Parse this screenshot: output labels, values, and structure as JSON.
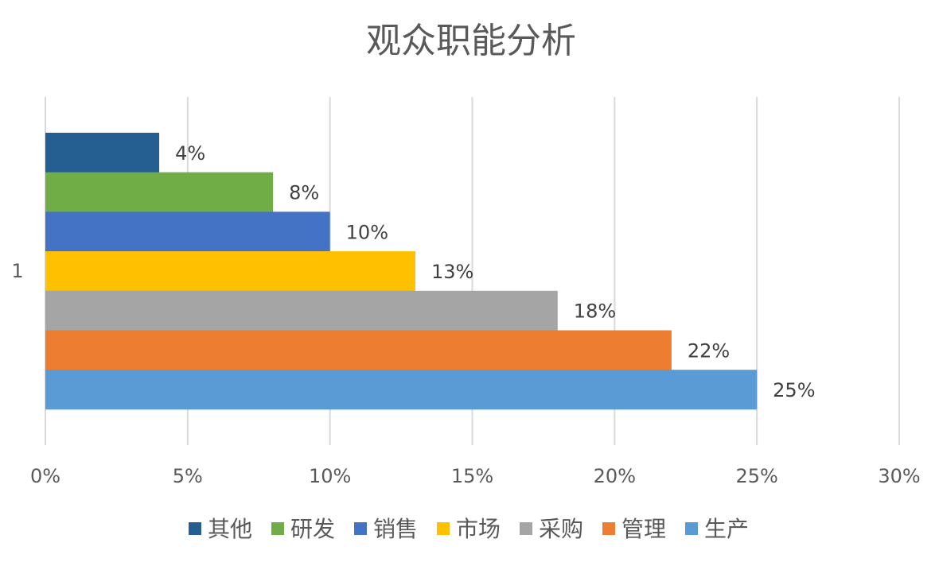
{
  "chart_data": {
    "type": "bar",
    "orientation": "horizontal",
    "title": "观众职能分析",
    "category": "1",
    "series": [
      {
        "name": "其他",
        "value": 4,
        "color": "#255e91"
      },
      {
        "name": "研发",
        "value": 8,
        "color": "#70ad47"
      },
      {
        "name": "销售",
        "value": 10,
        "color": "#4472c4"
      },
      {
        "name": "市场",
        "value": 13,
        "color": "#ffc000"
      },
      {
        "name": "采购",
        "value": 18,
        "color": "#a5a5a5"
      },
      {
        "name": "管理",
        "value": 22,
        "color": "#ed7d31"
      },
      {
        "name": "生产",
        "value": 25,
        "color": "#5b9bd5"
      }
    ],
    "data_labels": [
      "4%",
      "8%",
      "10%",
      "13%",
      "18%",
      "22%",
      "25%"
    ],
    "x_ticks": [
      "0%",
      "5%",
      "10%",
      "15%",
      "20%",
      "25%",
      "30%"
    ],
    "xlim": [
      0,
      30
    ],
    "x_unit": "%",
    "grid": "vertical",
    "legend_position": "bottom"
  }
}
